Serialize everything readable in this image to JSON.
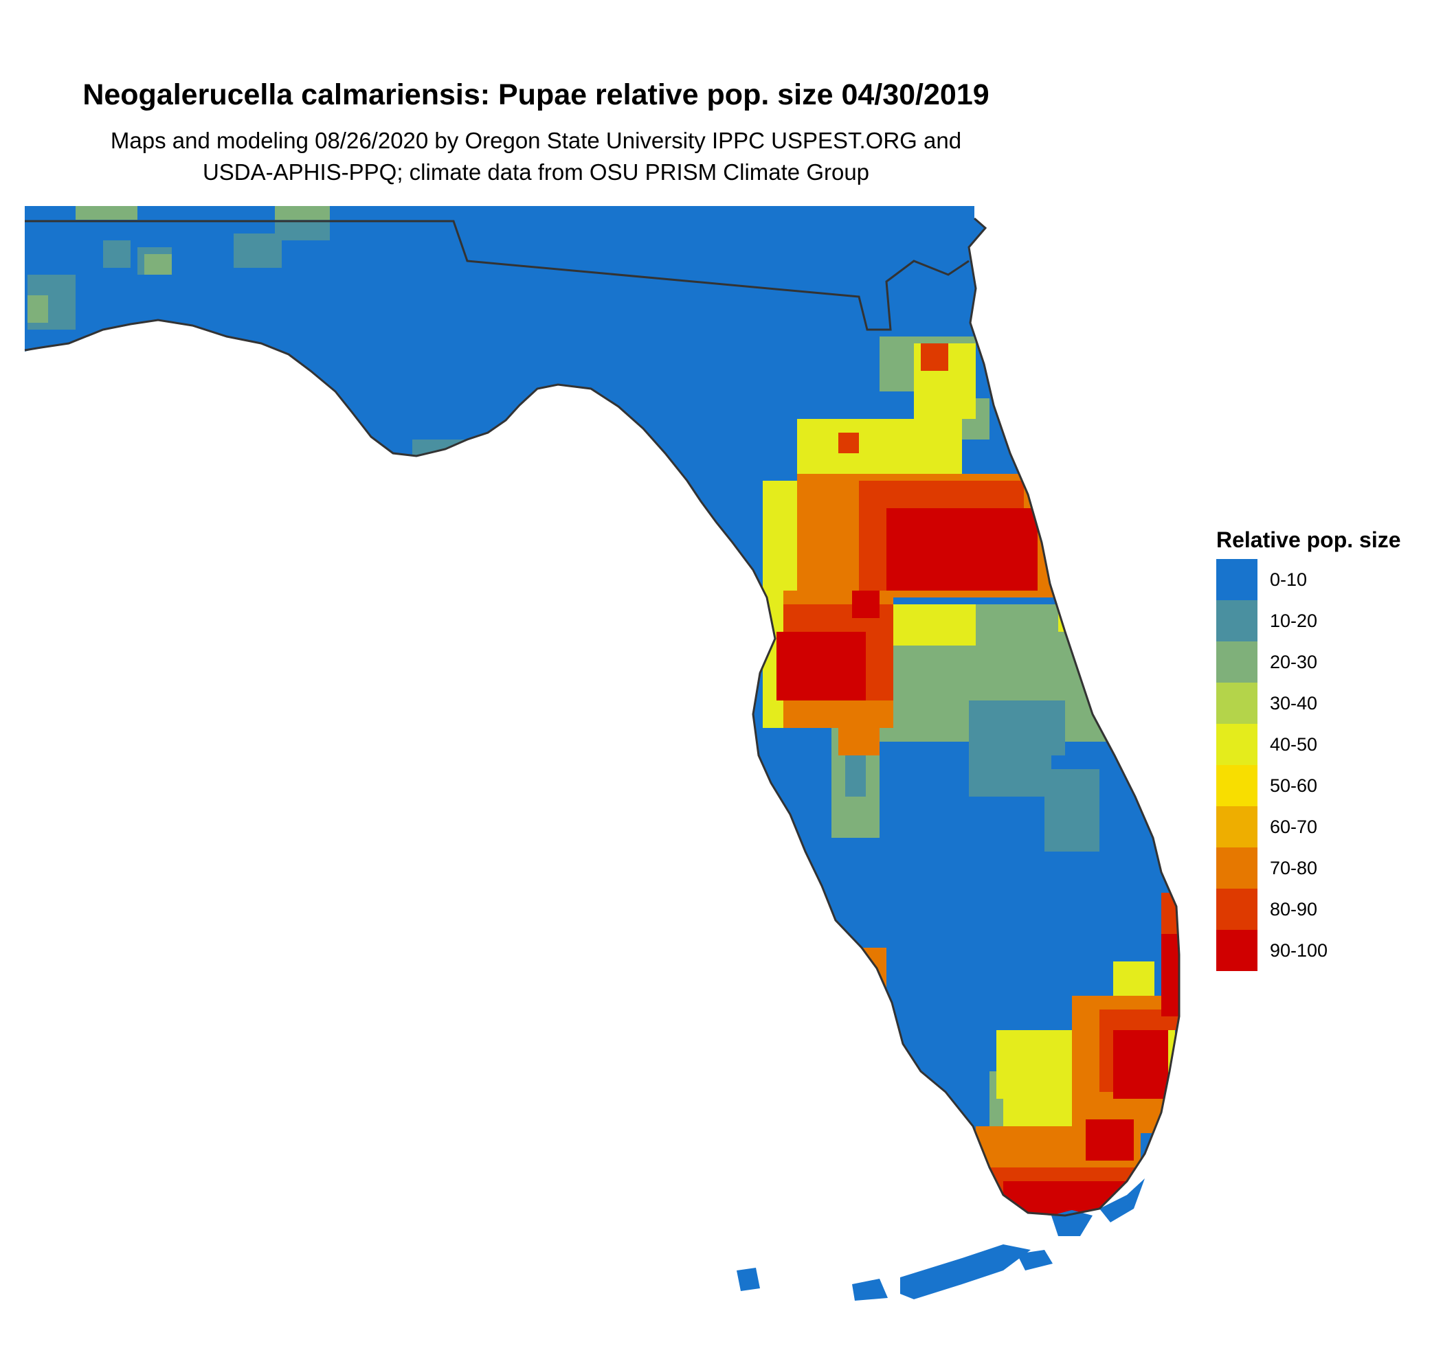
{
  "title": "Neogalerucella calmariensis: Pupae relative pop. size 04/30/2019",
  "subtitle_line1": "Maps and modeling 08/26/2020 by Oregon State University IPPC USPEST.ORG and",
  "subtitle_line2": "USDA-APHIS-PPQ; climate data from OSU PRISM Climate Group",
  "legend": {
    "title": "Relative pop. size",
    "items": [
      {
        "label": "0-10",
        "color": "#1874CD"
      },
      {
        "label": "10-20",
        "color": "#4A90A0"
      },
      {
        "label": "20-30",
        "color": "#7FB07A"
      },
      {
        "label": "30-40",
        "color": "#B4D44A"
      },
      {
        "label": "40-50",
        "color": "#E4EC1C"
      },
      {
        "label": "50-60",
        "color": "#F8DE00"
      },
      {
        "label": "60-70",
        "color": "#EEAE00"
      },
      {
        "label": "70-80",
        "color": "#E67800"
      },
      {
        "label": "80-90",
        "color": "#DE3A00"
      },
      {
        "label": "90-100",
        "color": "#D00000"
      }
    ]
  },
  "map": {
    "region": "Florida",
    "outline_color": "#333333",
    "background_class_color": "#1874CD"
  }
}
